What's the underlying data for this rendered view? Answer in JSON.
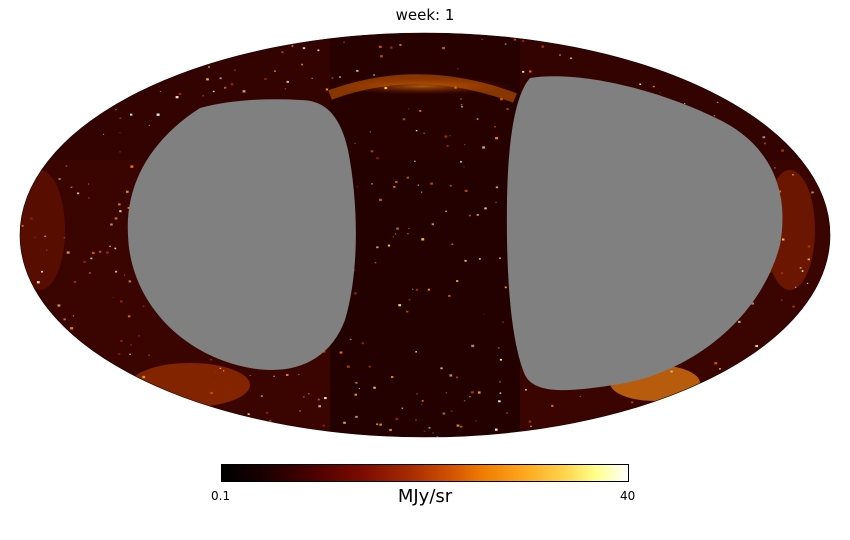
{
  "title": "week: 1",
  "colorbar": {
    "min_label": "0.1",
    "max_label": "40",
    "unit_label": "MJy/sr",
    "colormap": "afmhot"
  },
  "map": {
    "projection": "mollweide",
    "masked_color": "#808080",
    "background_color": "#ffffff"
  }
}
